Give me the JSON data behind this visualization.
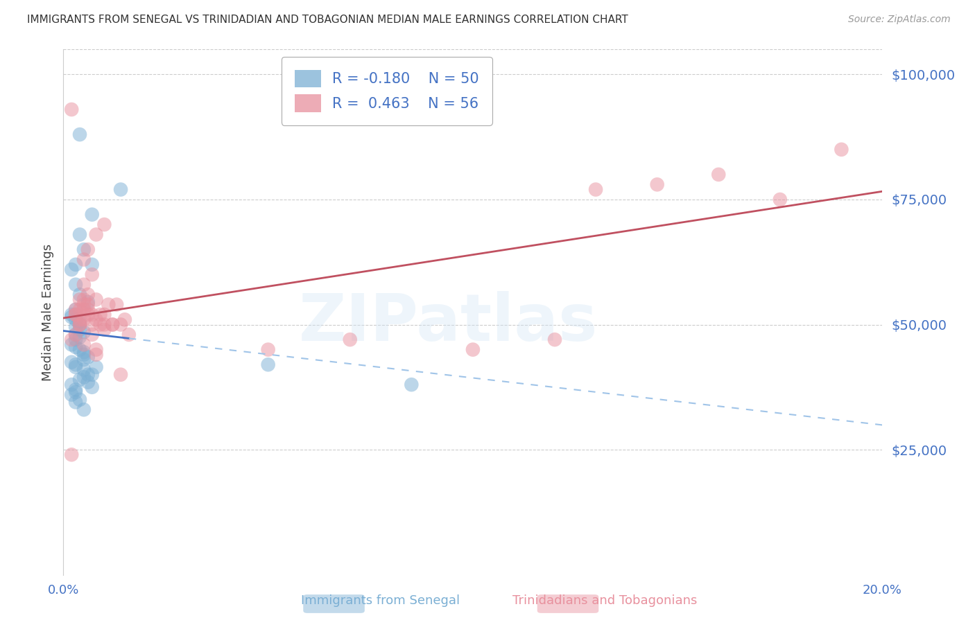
{
  "title": "IMMIGRANTS FROM SENEGAL VS TRINIDADIAN AND TOBAGONIAN MEDIAN MALE EARNINGS CORRELATION CHART",
  "source": "Source: ZipAtlas.com",
  "ylabel": "Median Male Earnings",
  "xmin": 0.0,
  "xmax": 0.2,
  "ymin": 0,
  "ymax": 105000,
  "yticks": [
    0,
    25000,
    50000,
    75000,
    100000
  ],
  "ytick_labels": [
    "",
    "$25,000",
    "$50,000",
    "$75,000",
    "$100,000"
  ],
  "xticks": [
    0.0,
    0.04,
    0.08,
    0.12,
    0.16,
    0.2
  ],
  "xtick_labels": [
    "0.0%",
    "",
    "",
    "",
    "",
    "20.0%"
  ],
  "blue_R": -0.18,
  "blue_N": 50,
  "pink_R": 0.463,
  "pink_N": 56,
  "blue_color": "#7bafd4",
  "pink_color": "#e8919e",
  "blue_line_color": "#4472c4",
  "blue_dash_color": "#a0c4e8",
  "pink_line_color": "#c05060",
  "blue_label": "Immigrants from Senegal",
  "pink_label": "Trinidadians and Tobagonians",
  "watermark": "ZIPatlas",
  "title_color": "#333333",
  "tick_color": "#4472c4",
  "grid_color": "#cccccc",
  "blue_scatter_x": [
    0.004,
    0.014,
    0.007,
    0.004,
    0.005,
    0.003,
    0.002,
    0.003,
    0.004,
    0.006,
    0.003,
    0.002,
    0.002,
    0.003,
    0.004,
    0.004,
    0.003,
    0.004,
    0.005,
    0.003,
    0.004,
    0.003,
    0.002,
    0.003,
    0.004,
    0.005,
    0.005,
    0.006,
    0.005,
    0.007,
    0.002,
    0.003,
    0.003,
    0.002,
    0.005,
    0.007,
    0.007,
    0.006,
    0.005,
    0.004,
    0.003,
    0.003,
    0.002,
    0.004,
    0.006,
    0.003,
    0.005,
    0.008,
    0.05,
    0.085
  ],
  "blue_scatter_y": [
    88000,
    77000,
    72000,
    68000,
    65000,
    62000,
    61000,
    58000,
    56000,
    54500,
    53000,
    52000,
    51500,
    51000,
    50500,
    50000,
    49500,
    49000,
    48500,
    48000,
    47500,
    47000,
    46000,
    45500,
    45000,
    44500,
    44000,
    43500,
    43000,
    62000,
    42500,
    42000,
    41500,
    38000,
    41000,
    40000,
    37500,
    40000,
    39500,
    39000,
    37000,
    36500,
    36000,
    35000,
    38500,
    34500,
    33000,
    41500,
    42000,
    38000
  ],
  "pink_scatter_x": [
    0.002,
    0.002,
    0.003,
    0.004,
    0.004,
    0.005,
    0.005,
    0.005,
    0.006,
    0.006,
    0.006,
    0.007,
    0.008,
    0.008,
    0.008,
    0.009,
    0.009,
    0.01,
    0.01,
    0.011,
    0.012,
    0.013,
    0.014,
    0.015,
    0.016,
    0.003,
    0.004,
    0.005,
    0.006,
    0.007,
    0.003,
    0.004,
    0.005,
    0.006,
    0.007,
    0.008,
    0.004,
    0.005,
    0.003,
    0.01,
    0.007,
    0.005,
    0.008,
    0.01,
    0.012,
    0.014,
    0.05,
    0.07,
    0.1,
    0.12,
    0.13,
    0.145,
    0.16,
    0.175,
    0.19,
    0.002
  ],
  "pink_scatter_y": [
    93000,
    24000,
    52000,
    53000,
    55000,
    54000,
    58000,
    63000,
    56000,
    54000,
    65000,
    52000,
    68000,
    51000,
    55000,
    52000,
    50000,
    70000,
    49000,
    54000,
    50000,
    54000,
    50000,
    51000,
    48000,
    52000,
    50000,
    46000,
    52000,
    48000,
    53000,
    51000,
    55000,
    53000,
    50000,
    44000,
    50000,
    51000,
    48000,
    50000,
    60000,
    53000,
    45000,
    52000,
    50000,
    40000,
    45000,
    47000,
    45000,
    47000,
    77000,
    78000,
    80000,
    75000,
    85000,
    47000
  ]
}
